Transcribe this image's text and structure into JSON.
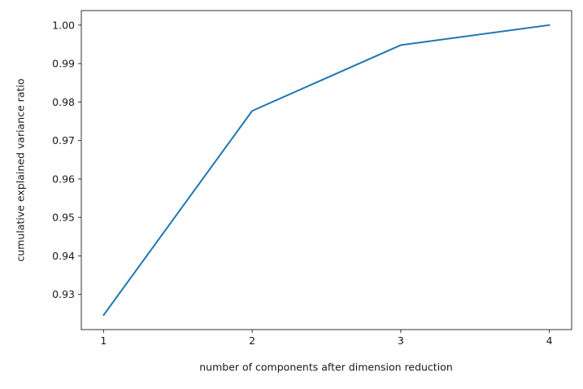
{
  "chart_data": {
    "type": "line",
    "title": "",
    "xlabel": "number of components after dimension reduction",
    "ylabel": "cumulative explained variance ratio",
    "x": [
      1,
      2,
      3,
      4
    ],
    "y": [
      0.9246,
      0.9777,
      0.9948,
      1.0
    ],
    "xlim": [
      0.85,
      4.15
    ],
    "ylim": [
      0.92084,
      1.00377
    ],
    "xticks": [
      1,
      2,
      3,
      4
    ],
    "xtick_labels": [
      "1",
      "2",
      "3",
      "4"
    ],
    "yticks": [
      0.93,
      0.94,
      0.95,
      0.96,
      0.97,
      0.98,
      0.99,
      1.0
    ],
    "ytick_labels": [
      "0.93",
      "0.94",
      "0.95",
      "0.96",
      "0.97",
      "0.98",
      "0.99",
      "1.00"
    ],
    "line_color": "#1f77b4",
    "spine_color": "#333333",
    "background_color": "#ffffff",
    "grid": false,
    "legend_position": "none"
  }
}
